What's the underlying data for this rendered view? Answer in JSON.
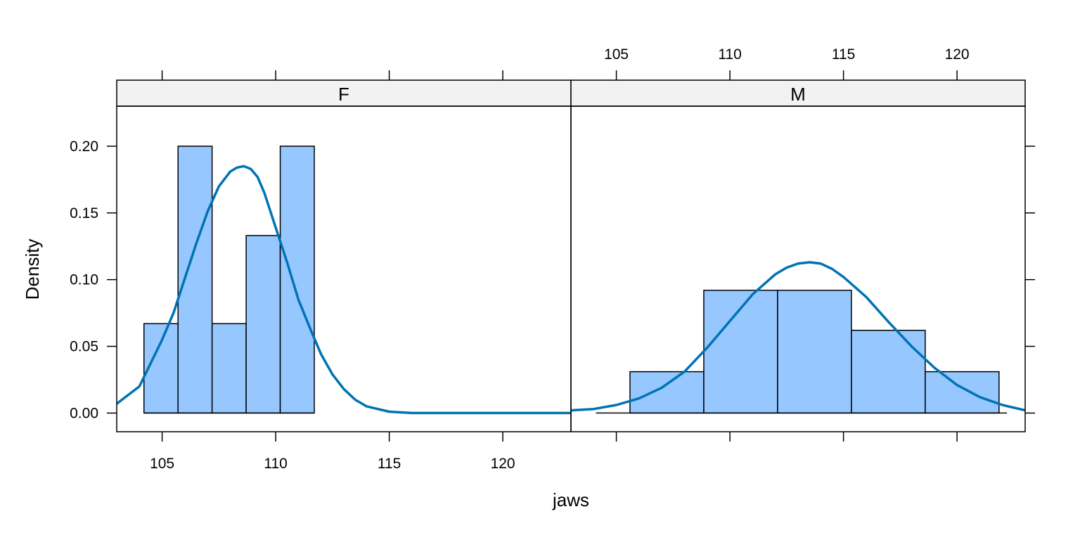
{
  "chart_data": {
    "type": "bar",
    "subtype": "histogram-with-density",
    "xlabel": "jaws",
    "ylabel": "Density",
    "xlim": [
      103,
      123
    ],
    "ylim": [
      -0.014,
      0.23
    ],
    "x_ticks": [
      105,
      110,
      115,
      120
    ],
    "y_ticks": [
      "0.00",
      "0.05",
      "0.10",
      "0.15",
      "0.20"
    ],
    "y_tick_values": [
      0,
      0.05,
      0.1,
      0.15,
      0.2
    ],
    "colors": {
      "bar_fill": "#96C7FF",
      "bar_stroke": "#000000",
      "density_line": "#0073B3",
      "strip_fill": "#F2F2F2"
    },
    "panels": [
      {
        "strip": "F",
        "bins": [
          {
            "x0": 104.2,
            "x1": 105.7,
            "density": 0.067
          },
          {
            "x0": 105.7,
            "x1": 107.2,
            "density": 0.2
          },
          {
            "x0": 107.2,
            "x1": 108.7,
            "density": 0.067
          },
          {
            "x0": 108.7,
            "x1": 110.2,
            "density": 0.133
          },
          {
            "x0": 110.2,
            "x1": 111.7,
            "density": 0.2
          }
        ],
        "baseline_x": [
          104.2,
          111.7
        ],
        "density_curve": {
          "x": [
            103,
            104,
            105,
            105.5,
            106,
            106.5,
            107,
            107.5,
            108,
            108.3,
            108.6,
            108.9,
            109.2,
            109.5,
            110,
            110.5,
            111,
            111.5,
            112,
            112.5,
            113,
            113.5,
            114,
            115,
            116,
            117,
            118,
            119,
            120,
            121,
            122,
            123
          ],
          "y": [
            0.007,
            0.02,
            0.055,
            0.075,
            0.101,
            0.127,
            0.151,
            0.17,
            0.181,
            0.184,
            0.185,
            0.183,
            0.177,
            0.165,
            0.139,
            0.113,
            0.085,
            0.064,
            0.044,
            0.029,
            0.018,
            0.01,
            0.005,
            0.001,
            0,
            0,
            0,
            0,
            0,
            0,
            0,
            0
          ]
        }
      },
      {
        "strip": "M",
        "bins": [
          {
            "x0": 105.6,
            "x1": 108.85,
            "density": 0.031
          },
          {
            "x0": 108.85,
            "x1": 112.1,
            "density": 0.092
          },
          {
            "x0": 112.1,
            "x1": 115.35,
            "density": 0.092
          },
          {
            "x0": 115.35,
            "x1": 118.6,
            "density": 0.062
          },
          {
            "x0": 118.6,
            "x1": 121.85,
            "density": 0.031
          }
        ],
        "baseline_x": [
          104.1,
          122.2
        ],
        "density_curve": {
          "x": [
            103,
            104,
            105,
            106,
            107,
            108,
            109,
            110,
            111,
            112,
            112.5,
            113,
            113.5,
            114,
            114.5,
            115,
            116,
            117,
            118,
            119,
            120,
            121,
            122,
            123
          ],
          "y": [
            0.002,
            0.003,
            0.006,
            0.011,
            0.019,
            0.031,
            0.049,
            0.069,
            0.089,
            0.104,
            0.109,
            0.112,
            0.113,
            0.112,
            0.108,
            0.102,
            0.087,
            0.068,
            0.05,
            0.034,
            0.021,
            0.012,
            0.006,
            0.002
          ]
        }
      }
    ]
  }
}
